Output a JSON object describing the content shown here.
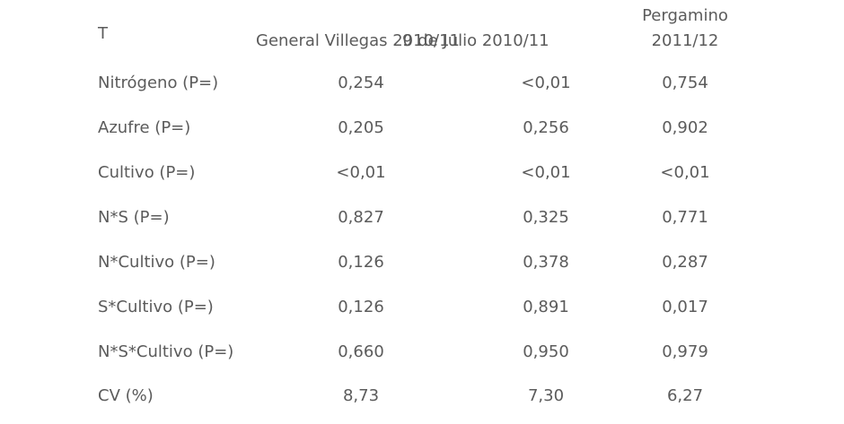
{
  "table": {
    "header": {
      "label": "T",
      "col1": "General Villegas 2010/11",
      "col2": "9 de Julio 2010/11",
      "col3_line1": "Pergamino",
      "col3_line2": "2011/12"
    },
    "rows": [
      {
        "label": "Nitrógeno (P=)",
        "v1": "0,254",
        "v2": "<0,01",
        "v3": "0,754"
      },
      {
        "label": "Azufre (P=)",
        "v1": "0,205",
        "v2": "0,256",
        "v3": "0,902"
      },
      {
        "label": "Cultivo (P=)",
        "v1": "<0,01",
        "v2": "<0,01",
        "v3": "<0,01"
      },
      {
        "label": "N*S (P=)",
        "v1": "0,827",
        "v2": "0,325",
        "v3": "0,771"
      },
      {
        "label": "N*Cultivo (P=)",
        "v1": "0,126",
        "v2": "0,378",
        "v3": "0,287"
      },
      {
        "label": "S*Cultivo (P=)",
        "v1": "0,126",
        "v2": "0,891",
        "v3": "0,017"
      },
      {
        "label": "N*S*Cultivo (P=)",
        "v1": "0,660",
        "v2": "0,950",
        "v3": "0,979"
      },
      {
        "label": "CV (%)",
        "v1": "8,73",
        "v2": "7,30",
        "v3": "6,27"
      }
    ]
  },
  "colors": {
    "text": "#5b5b5b",
    "background": "#ffffff"
  }
}
